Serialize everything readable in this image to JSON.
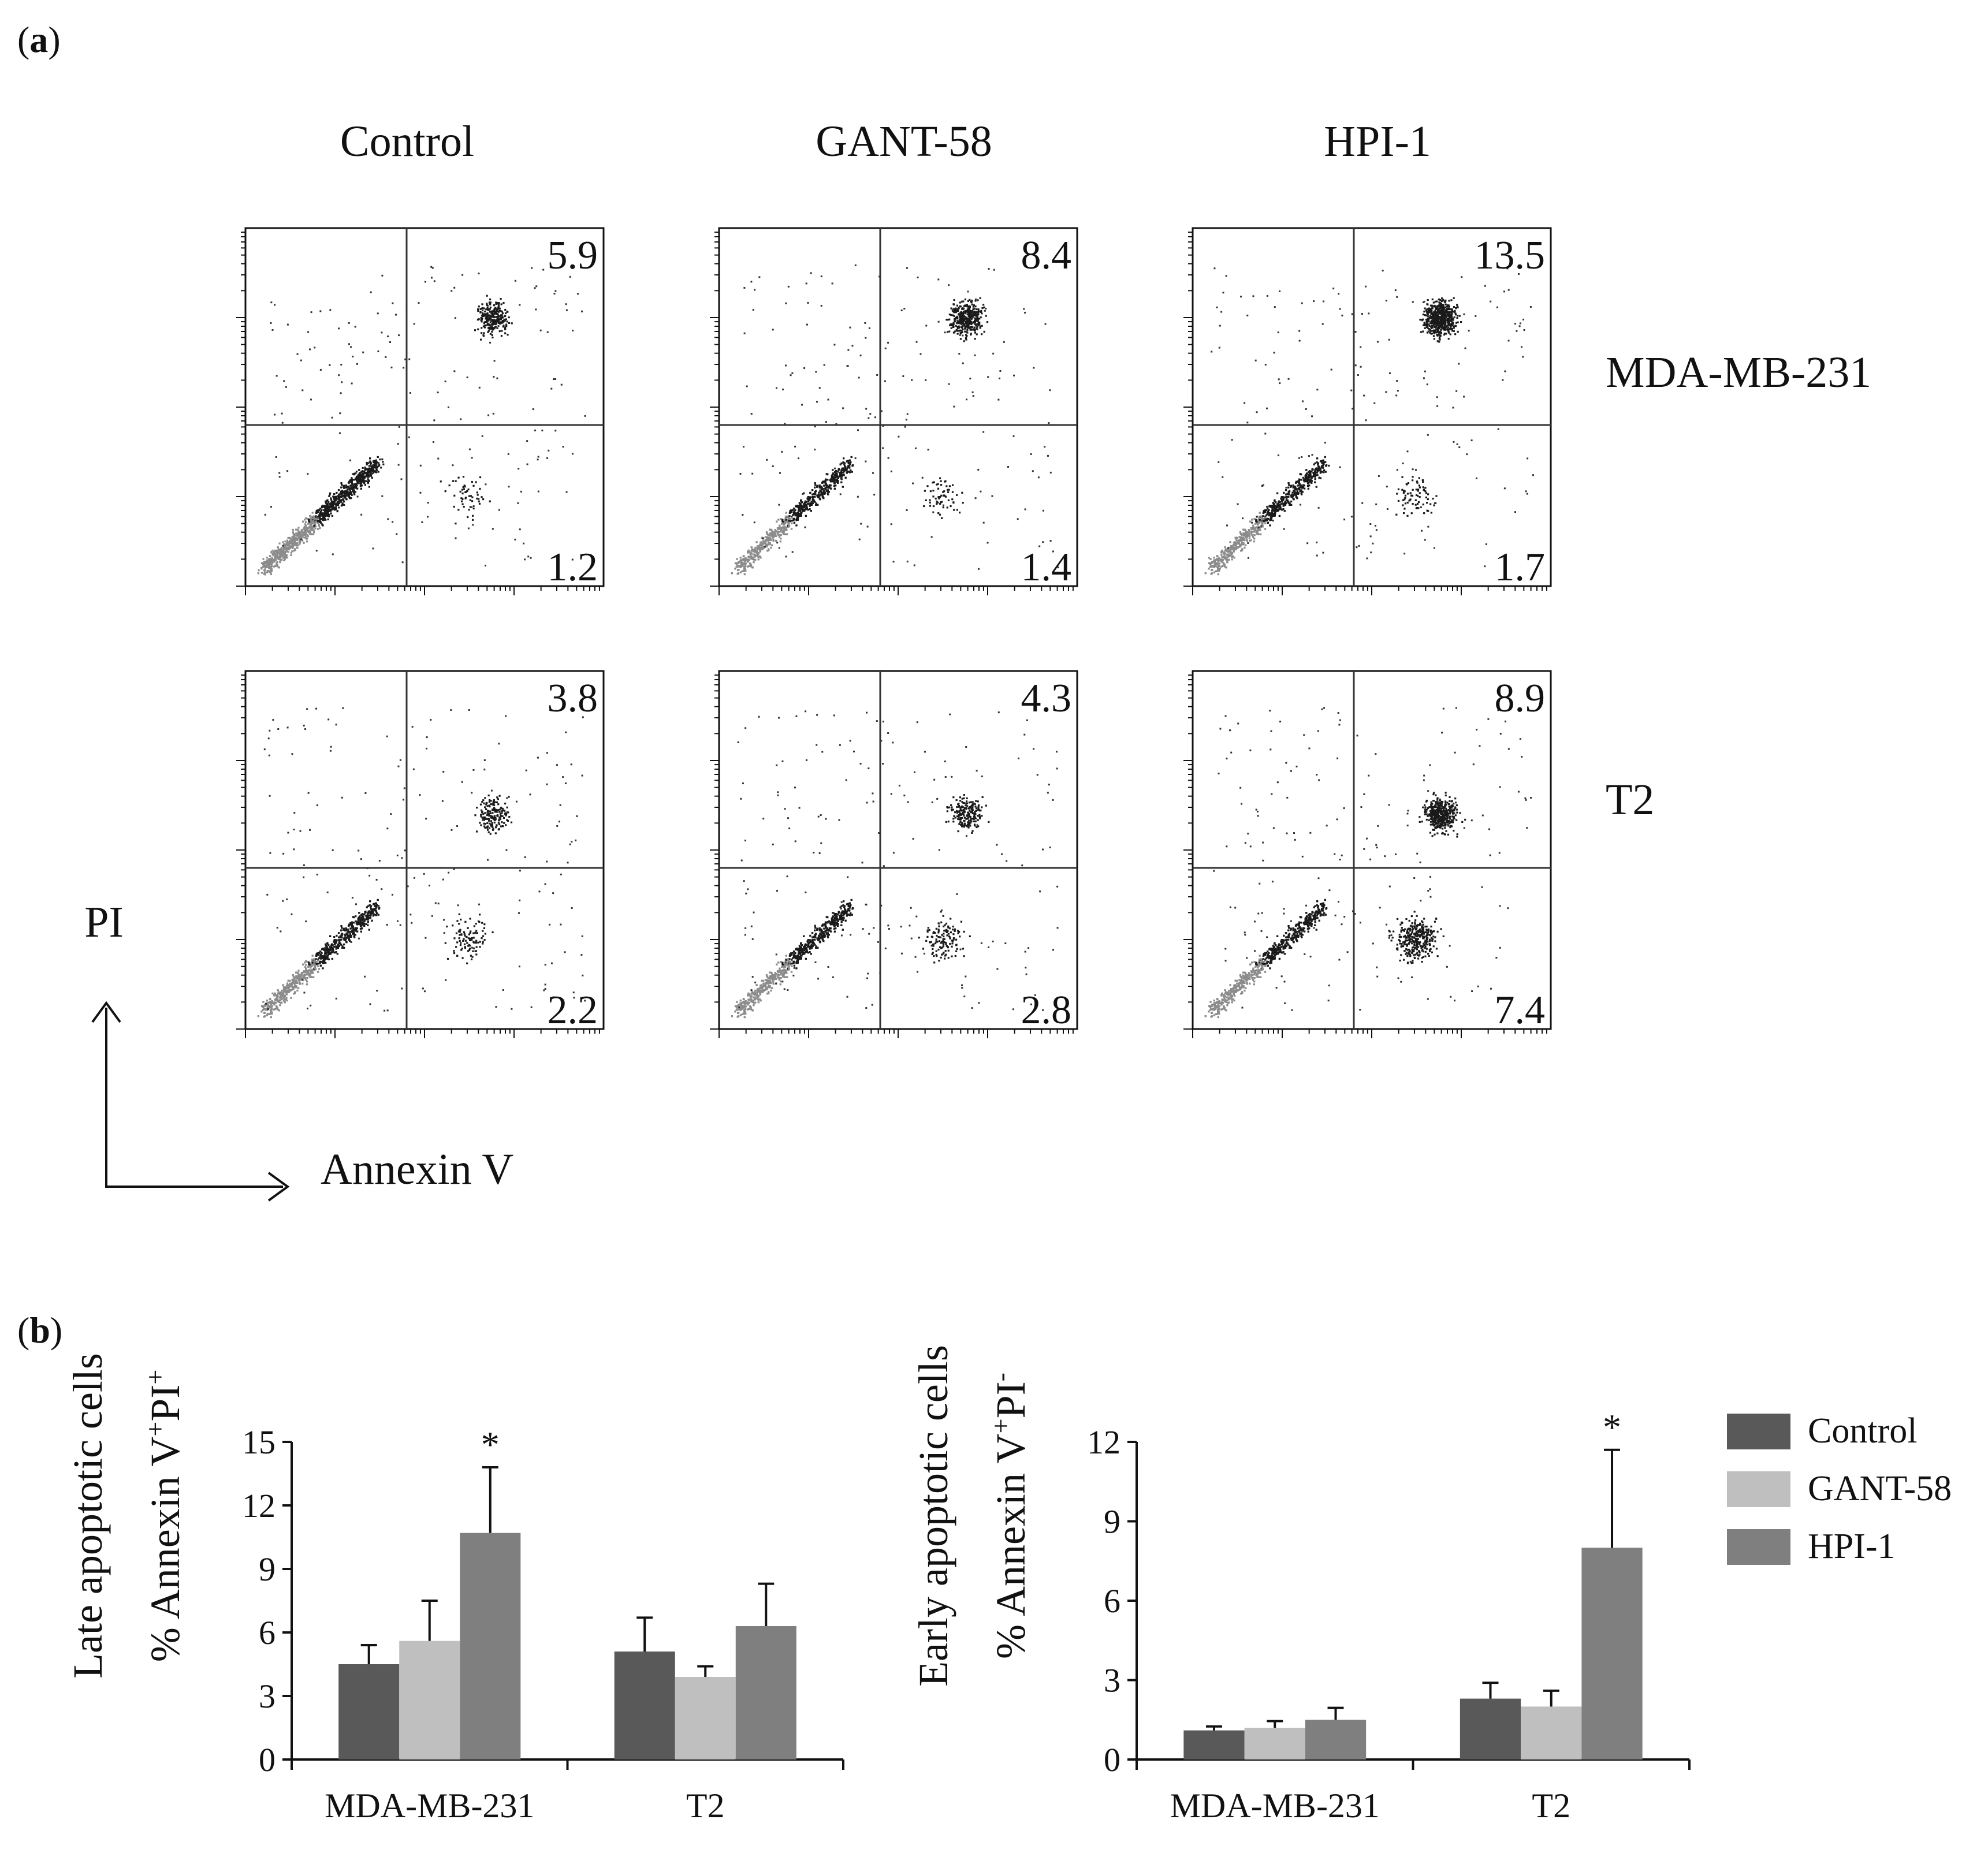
{
  "panel_a": {
    "label": "a",
    "columns": [
      "Control",
      "GANT-58",
      "HPI-1"
    ],
    "rows": [
      "MDA-MB-231",
      "T2"
    ],
    "y_axis_label": "PI",
    "x_axis_label": "Annexin V",
    "plots": [
      {
        "row": 0,
        "col": 0,
        "upper_right": "5.9",
        "lower_right": "1.2"
      },
      {
        "row": 0,
        "col": 1,
        "upper_right": "8.4",
        "lower_right": "1.4"
      },
      {
        "row": 0,
        "col": 2,
        "upper_right": "13.5",
        "lower_right": "1.7"
      },
      {
        "row": 1,
        "col": 0,
        "upper_right": "3.8",
        "lower_right": "2.2"
      },
      {
        "row": 1,
        "col": 1,
        "upper_right": "4.3",
        "lower_right": "2.8"
      },
      {
        "row": 1,
        "col": 2,
        "upper_right": "8.9",
        "lower_right": "7.4"
      }
    ]
  },
  "panel_b": {
    "label": "b"
  },
  "legend": {
    "entries": [
      {
        "name": "Control",
        "color": "#595959"
      },
      {
        "name": "GANT-58",
        "color": "#bfbfbf"
      },
      {
        "name": "HPI-1",
        "color": "#7f7f7f"
      }
    ]
  },
  "chart_data": [
    {
      "type": "bar",
      "ylabel_line1": "Late apoptotic cells",
      "ylabel_line2_prefix": "% Annexin V",
      "ylabel_line2_sup1": "+",
      "ylabel_line2_mid": "PI",
      "ylabel_line2_sup2": "+",
      "categories": [
        "MDA-MB-231",
        "T2"
      ],
      "ylim": [
        0,
        15
      ],
      "yticks": [
        "0",
        "3",
        "6",
        "9",
        "12",
        "15"
      ],
      "series": [
        {
          "name": "Control",
          "values": [
            4.5,
            5.1
          ],
          "errors": [
            0.9,
            1.6
          ]
        },
        {
          "name": "GANT-58",
          "values": [
            5.6,
            3.9
          ],
          "errors": [
            1.9,
            0.5
          ]
        },
        {
          "name": "HPI-1",
          "values": [
            10.7,
            6.3
          ],
          "errors": [
            3.1,
            2.0
          ]
        }
      ],
      "significance": [
        {
          "category": 0,
          "series": 2,
          "mark": "*"
        }
      ]
    },
    {
      "type": "bar",
      "ylabel_line1": "Early apoptotic cells",
      "ylabel_line2_prefix": "% Annexin V",
      "ylabel_line2_sup1": "+",
      "ylabel_line2_mid": "PI",
      "ylabel_line2_sup2": "-",
      "categories": [
        "MDA-MB-231",
        "T2"
      ],
      "ylim": [
        0,
        12
      ],
      "yticks": [
        "0",
        "3",
        "6",
        "9",
        "12"
      ],
      "series": [
        {
          "name": "Control",
          "values": [
            1.1,
            2.3
          ],
          "errors": [
            0.15,
            0.6
          ]
        },
        {
          "name": "GANT-58",
          "values": [
            1.2,
            2.0
          ],
          "errors": [
            0.25,
            0.6
          ]
        },
        {
          "name": "HPI-1",
          "values": [
            1.5,
            8.0
          ],
          "errors": [
            0.45,
            3.7
          ]
        }
      ],
      "significance": [
        {
          "category": 1,
          "series": 2,
          "mark": "*"
        }
      ]
    }
  ]
}
